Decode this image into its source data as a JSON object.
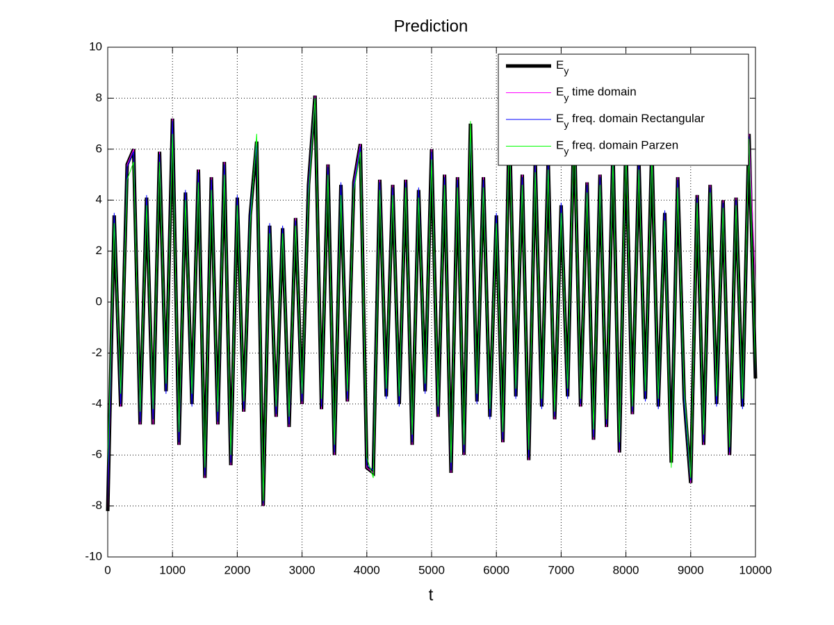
{
  "chart_data": {
    "type": "line",
    "title": "Prediction",
    "x_label": "t",
    "xlim": [
      0,
      10000
    ],
    "xticks": [
      0,
      1000,
      2000,
      3000,
      4000,
      5000,
      6000,
      7000,
      8000,
      9000,
      10000
    ],
    "ylim": [
      -10,
      10
    ],
    "yticks": [
      -10,
      -8,
      -6,
      -4,
      -2,
      0,
      2,
      4,
      6,
      8,
      10
    ],
    "grid": true,
    "legend": "upper right",
    "x": [
      0,
      100,
      200,
      300,
      400,
      500,
      600,
      700,
      800,
      900,
      1000,
      1100,
      1200,
      1300,
      1400,
      1500,
      1600,
      1700,
      1800,
      1900,
      2000,
      2100,
      2200,
      2300,
      2400,
      2500,
      2600,
      2700,
      2800,
      2900,
      3000,
      3100,
      3200,
      3300,
      3400,
      3500,
      3600,
      3700,
      3800,
      3900,
      4000,
      4100,
      4200,
      4300,
      4400,
      4500,
      4600,
      4700,
      4800,
      4900,
      5000,
      5100,
      5200,
      5300,
      5400,
      5500,
      5600,
      5700,
      5800,
      5900,
      6000,
      6100,
      6200,
      6300,
      6400,
      6500,
      6600,
      6700,
      6800,
      6900,
      7000,
      7100,
      7200,
      7300,
      7400,
      7500,
      7600,
      7700,
      7800,
      7900,
      8000,
      8100,
      8200,
      8300,
      8400,
      8500,
      8600,
      8700,
      8800,
      8900,
      9000,
      9100,
      9200,
      9300,
      9400,
      9500,
      9600,
      9700,
      9800,
      9900,
      10000
    ],
    "series": [
      {
        "name": "Ey",
        "color": "#000000",
        "width": 5,
        "values": [
          -8.2,
          3.4,
          -4.1,
          5.4,
          6.0,
          -4.8,
          4.1,
          -4.8,
          5.9,
          -3.5,
          7.2,
          -5.6,
          4.3,
          -4.0,
          5.2,
          -6.9,
          4.9,
          -4.8,
          5.5,
          -6.4,
          4.1,
          -4.3,
          3.4,
          6.3,
          -8.0,
          3.0,
          -4.5,
          2.9,
          -4.9,
          3.3,
          -4.0,
          4.6,
          8.1,
          -4.2,
          5.4,
          -6.0,
          4.6,
          -3.9,
          4.7,
          6.2,
          -6.5,
          -6.7,
          4.8,
          -3.7,
          4.6,
          -4.0,
          4.8,
          -5.6,
          4.4,
          -3.5,
          6.0,
          -4.5,
          5.0,
          -6.7,
          4.9,
          -6.0,
          7.0,
          -3.9,
          4.9,
          -4.5,
          3.4,
          -5.5,
          7.2,
          -3.7,
          5.0,
          -6.2,
          5.5,
          -4.1,
          5.6,
          -4.6,
          3.8,
          -3.7,
          7.2,
          -4.1,
          4.7,
          -5.4,
          5.0,
          -4.9,
          6.0,
          -5.9,
          6.3,
          -4.4,
          5.6,
          -3.8,
          6.1,
          -4.1,
          3.5,
          -6.3,
          4.9,
          -3.8,
          -7.1,
          4.2,
          -5.6,
          4.6,
          -4.0,
          4.0,
          -6.0,
          4.1,
          -4.1,
          6.6,
          -3.0
        ]
      },
      {
        "name": "Ey time domain",
        "color": "#ff00ff",
        "width": 1,
        "values": [
          -8.2,
          3.4,
          -4.1,
          5.4,
          6.0,
          -4.8,
          4.1,
          -4.8,
          5.9,
          -3.5,
          7.2,
          -5.6,
          4.3,
          -4.0,
          5.2,
          -6.9,
          4.9,
          -4.8,
          5.5,
          -6.4,
          4.1,
          -4.3,
          3.4,
          6.3,
          -8.0,
          3.0,
          -4.5,
          2.9,
          -4.9,
          3.3,
          -4.0,
          4.6,
          8.1,
          -4.2,
          5.4,
          -6.0,
          4.6,
          -3.9,
          4.7,
          6.2,
          -6.5,
          -6.7,
          4.8,
          -3.7,
          4.6,
          -4.0,
          4.8,
          -5.6,
          4.4,
          -3.5,
          6.0,
          -4.5,
          5.0,
          -6.7,
          4.9,
          -6.0,
          7.0,
          -3.9,
          4.9,
          -4.5,
          3.4,
          -5.5,
          7.2,
          -3.7,
          5.0,
          -6.2,
          5.5,
          -4.1,
          5.6,
          -4.6,
          3.8,
          -3.7,
          7.2,
          -4.1,
          4.7,
          -5.4,
          5.0,
          -4.9,
          6.0,
          -5.9,
          6.3,
          -4.4,
          5.6,
          -3.8,
          6.1,
          -4.1,
          3.5,
          -6.3,
          4.9,
          -3.8,
          -7.1,
          4.2,
          -5.6,
          4.6,
          -4.0,
          4.0,
          -6.0,
          4.1,
          -4.1,
          6.6,
          0.8
        ]
      },
      {
        "name": "Ey freq. domain Rectangular",
        "color": "#0000ff",
        "width": 1,
        "values": [
          -7.9,
          3.5,
          -4.0,
          5.3,
          5.9,
          -4.7,
          4.2,
          -4.6,
          5.8,
          -3.6,
          7.1,
          -5.5,
          4.4,
          -4.1,
          5.1,
          -6.8,
          4.8,
          -4.7,
          5.4,
          -6.3,
          4.2,
          -4.2,
          3.5,
          6.2,
          -7.9,
          3.1,
          -4.4,
          3.0,
          -4.8,
          3.2,
          -3.9,
          4.5,
          8.0,
          -4.1,
          5.3,
          -5.9,
          4.7,
          -3.8,
          4.6,
          6.1,
          -6.4,
          -6.6,
          4.7,
          -3.8,
          4.5,
          -4.1,
          4.7,
          -5.5,
          4.5,
          -3.6,
          5.9,
          -4.4,
          4.9,
          -6.6,
          4.8,
          -5.9,
          6.9,
          -4.0,
          4.8,
          -4.6,
          3.5,
          -5.4,
          7.1,
          -3.8,
          4.9,
          -6.1,
          5.4,
          -4.2,
          5.5,
          -4.5,
          3.9,
          -3.8,
          7.1,
          -4.0,
          4.6,
          -5.3,
          4.9,
          -4.8,
          5.9,
          -5.8,
          6.2,
          -4.3,
          5.5,
          -3.9,
          6.0,
          -4.2,
          3.6,
          -6.2,
          4.8,
          -3.9,
          -7.0,
          4.1,
          -5.5,
          4.5,
          -4.1,
          3.9,
          -5.9,
          4.0,
          -4.2,
          6.5,
          -2.9
        ]
      },
      {
        "name": "Ey freq. domain Parzen",
        "color": "#00ff00",
        "width": 1,
        "values": [
          -6.6,
          3.1,
          -3.6,
          4.8,
          5.5,
          -4.3,
          3.8,
          -4.2,
          5.5,
          -3.2,
          6.6,
          -5.1,
          4.0,
          -3.6,
          4.7,
          -6.5,
          4.4,
          -4.3,
          5.0,
          -6.0,
          3.8,
          -3.9,
          3.1,
          6.6,
          -7.8,
          2.7,
          -4.1,
          2.7,
          -4.5,
          3.0,
          -3.6,
          4.2,
          8.0,
          -3.8,
          5.0,
          -5.6,
          4.2,
          -3.5,
          4.4,
          5.9,
          -6.1,
          -6.9,
          4.4,
          -3.4,
          4.2,
          -3.7,
          4.5,
          -5.2,
          4.1,
          -3.2,
          5.6,
          -4.1,
          4.6,
          -6.3,
          4.5,
          -5.6,
          7.1,
          -3.6,
          4.5,
          -4.2,
          3.1,
          -5.1,
          6.8,
          -3.4,
          4.6,
          -5.8,
          5.1,
          -3.8,
          5.2,
          -4.3,
          3.5,
          -3.4,
          6.9,
          -3.8,
          4.3,
          -5.0,
          4.6,
          -4.6,
          5.6,
          -5.5,
          6.2,
          -4.1,
          5.2,
          -3.5,
          5.8,
          -3.8,
          3.2,
          -6.5,
          4.5,
          -3.5,
          -6.9,
          3.9,
          -5.2,
          4.3,
          -3.7,
          3.7,
          -5.7,
          3.8,
          -3.8,
          6.4,
          -2.8
        ]
      }
    ]
  }
}
